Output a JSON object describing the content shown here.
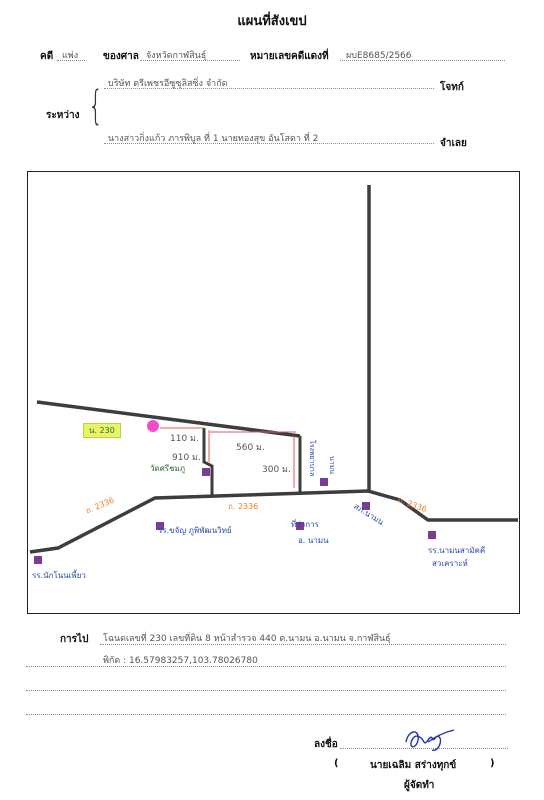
{
  "doc": {
    "title": "แผนที่สังเขป",
    "case_no_label": "คดี",
    "case_type": "แพ่ง",
    "court_label": "ของศาล",
    "court_value": "จังหวัดกาฬสินธุ์",
    "red_no_label": "หมายเลขคดีแดงที่",
    "red_no_value": "ผบE8685/2566",
    "between_label": "ระหว่าง",
    "plaintiff": "บริษัท ตรีเพชรอีซูซุลิสซิ่ง  จำกัด",
    "plaintiff_role": "โจทก์",
    "defendant": "นางสาวกิ่งแก้ว ภารพิบูล ที่ 1 นายทองสุข อันโสดา ที่ 2",
    "defendant_role": "จำเลย",
    "directions_label": "การไป",
    "directions_value": "โฉนดเลขที่ 230  เลขที่ดิน 8 หน้าสำรวจ 440  ต.นามน  อ.นามน  จ.กาฬสินธุ์",
    "coords_value": "พิกัด : 16.57983257,103.78026780",
    "sign_label": "ลงชื่อ",
    "signer_open": "(",
    "signer_name": "นายเฉลิม  สร่างทุกข์",
    "signer_close": ")",
    "signer_role": "ผู้จัดทำ"
  },
  "map": {
    "parcel_label": "น. 230",
    "dim_left": "110 ม.",
    "dim_top": "560 ม.",
    "dim_mid": "910 ม.",
    "dim_right": "300 ม.",
    "temple": "วัดศรีชมภู",
    "road_left": "ถ. 2336",
    "road_mid": "ถ. 2336",
    "road_right": "ถ. 2336",
    "school_left": "รร.นักโนนเพี้ยว",
    "school_mid": "รร.ขจัญ ภูพิพัฒนวิทย์",
    "district_office_1": "ที่ว่าการ",
    "district_office_2": "อ. นามน",
    "hospital_1": "โรงพยาบาล",
    "hospital_2": "นามน",
    "police": "สภ.นามน",
    "school_right_1": "รร.นามนสามัคคี",
    "school_right_2": "สวเคราะห์",
    "colors": {
      "road": "#3d3d3d",
      "parcel_label_bg": "#e8f56a",
      "pin": "#f04dc8",
      "marker": "#7a3d96",
      "road_label": "#f07f2a",
      "note_text": "#2e6b2e"
    }
  }
}
